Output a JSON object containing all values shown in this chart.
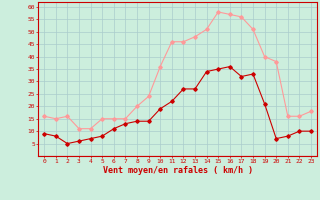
{
  "hours": [
    0,
    1,
    2,
    3,
    4,
    5,
    6,
    7,
    8,
    9,
    10,
    11,
    12,
    13,
    14,
    15,
    16,
    17,
    18,
    19,
    20,
    21,
    22,
    23
  ],
  "wind_mean": [
    9,
    8,
    5,
    6,
    7,
    8,
    11,
    13,
    14,
    14,
    19,
    22,
    27,
    27,
    34,
    35,
    36,
    32,
    33,
    21,
    7,
    8,
    10,
    10
  ],
  "wind_gust": [
    16,
    15,
    16,
    11,
    11,
    15,
    15,
    15,
    20,
    24,
    36,
    46,
    46,
    48,
    51,
    58,
    57,
    56,
    51,
    40,
    38,
    16,
    16,
    18
  ],
  "mean_color": "#cc0000",
  "gust_color": "#ff9999",
  "bg_color": "#cceedd",
  "grid_color": "#aacccc",
  "axis_line_color": "#cc0000",
  "xlabel": "Vent moyen/en rafales ( km/h )",
  "ylim_min": 0,
  "ylim_max": 62,
  "yticks": [
    5,
    10,
    15,
    20,
    25,
    30,
    35,
    40,
    45,
    50,
    55,
    60
  ],
  "xticks": [
    0,
    1,
    2,
    3,
    4,
    5,
    6,
    7,
    8,
    9,
    10,
    11,
    12,
    13,
    14,
    15,
    16,
    17,
    18,
    19,
    20,
    21,
    22,
    23
  ]
}
